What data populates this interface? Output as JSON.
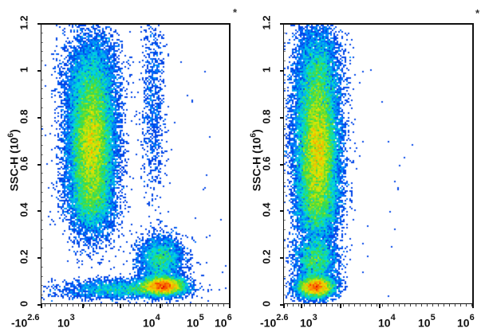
{
  "chart_data": [
    {
      "type": "scatter",
      "subtype": "flow-cytometry-density-dot-plot",
      "title": "",
      "annotation": "*",
      "xlabel": "",
      "ylabel": "SSC-H (10^6)",
      "x_scale": "biexponential/log",
      "x_tick_labels": [
        "-10^2.6",
        "10^3",
        "10^4",
        "10^5",
        "10^6"
      ],
      "y_tick_labels": [
        "0",
        "0.2",
        "0.4",
        "0.6",
        "0.8",
        "1",
        "1.2"
      ],
      "ylim": [
        0,
        1.2
      ],
      "populations": [
        {
          "name": "large-SSC population",
          "x_center_log": 2.9,
          "y_center": 0.68,
          "y_range": [
            0.38,
            1.2
          ],
          "density": "high"
        },
        {
          "name": "faint vertical stripe",
          "x_center_log": 3.95,
          "y_center": 0.8,
          "y_range": [
            0.4,
            1.15
          ],
          "density": "low"
        },
        {
          "name": "low-SSC positive cluster (upper)",
          "x_center_log": 4.05,
          "y_center": 0.2,
          "y_range": [
            0.12,
            0.3
          ],
          "density": "medium"
        },
        {
          "name": "low-SSC positive cluster (lower)",
          "x_center_log": 4.1,
          "y_center": 0.08,
          "y_range": [
            0.03,
            0.13
          ],
          "density": "high"
        },
        {
          "name": "low-SSC negative tail",
          "x_center_log": 3.2,
          "y_center": 0.07,
          "y_range": [
            0.02,
            0.11
          ],
          "density": "low"
        }
      ]
    },
    {
      "type": "scatter",
      "subtype": "flow-cytometry-density-dot-plot",
      "title": "",
      "annotation": "*",
      "xlabel": "",
      "ylabel": "SSC-H (10^6)",
      "x_scale": "biexponential/log",
      "x_tick_labels": [
        "-10^2.6",
        "10^3",
        "10^4",
        "10^5",
        "10^6"
      ],
      "y_tick_labels": [
        "0",
        "0.2",
        "0.4",
        "0.6",
        "0.8",
        "1",
        "1.2"
      ],
      "ylim": [
        0,
        1.2
      ],
      "populations": [
        {
          "name": "large-SSC population",
          "x_center_log": 2.75,
          "y_center": 0.68,
          "y_range": [
            0.33,
            1.2
          ],
          "density": "high"
        },
        {
          "name": "low-SSC cluster (upper)",
          "x_center_log": 2.75,
          "y_center": 0.2,
          "y_range": [
            0.13,
            0.3
          ],
          "density": "medium"
        },
        {
          "name": "low-SSC cluster (lower)",
          "x_center_log": 2.75,
          "y_center": 0.08,
          "y_range": [
            0.03,
            0.13
          ],
          "density": "high"
        }
      ]
    }
  ],
  "panels": [
    {
      "annotation": "*",
      "ylabel": "SSC-H (10",
      "ylabel_exp": "6",
      "ylabel_close": ")",
      "yticks": [
        "0",
        "0.2",
        "0.4",
        "0.6",
        "0.8",
        "1",
        "1.2"
      ],
      "xticks": [
        {
          "base": "-10",
          "exp": "2.6"
        },
        {
          "base": "10",
          "exp": "3"
        },
        {
          "base": "10",
          "exp": "4"
        },
        {
          "base": "10",
          "exp": "5"
        },
        {
          "base": "10",
          "exp": "6"
        }
      ]
    },
    {
      "annotation": "*",
      "ylabel": "SSC-H (10",
      "ylabel_exp": "6",
      "ylabel_close": ")",
      "yticks": [
        "0",
        "0.2",
        "0.4",
        "0.6",
        "0.8",
        "1",
        "1.2"
      ],
      "xticks": [
        {
          "base": "-10",
          "exp": "2.6"
        },
        {
          "base": "10",
          "exp": "3"
        },
        {
          "base": "10",
          "exp": "4"
        },
        {
          "base": "10",
          "exp": "5"
        },
        {
          "base": "10",
          "exp": "6"
        }
      ]
    }
  ]
}
